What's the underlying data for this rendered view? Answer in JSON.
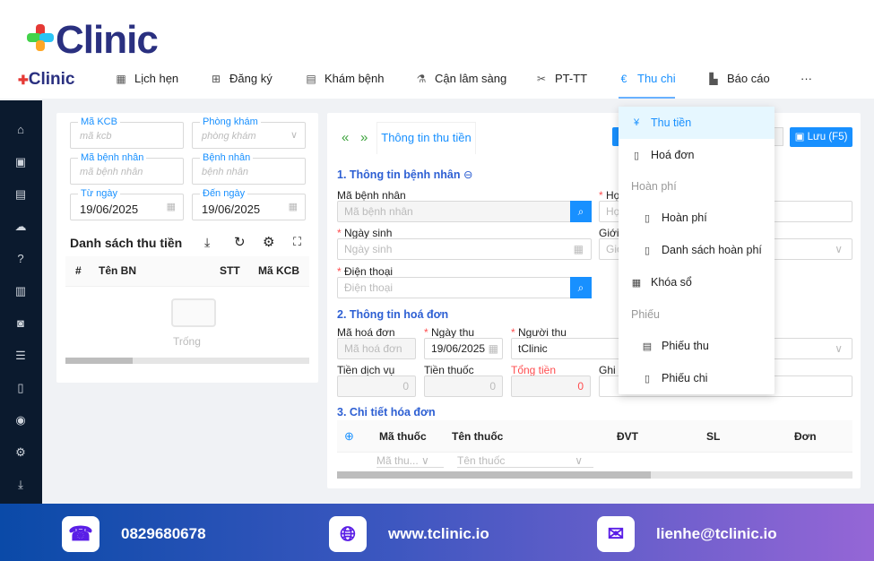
{
  "brand": {
    "name": "Clinic",
    "prefix": "t"
  },
  "nav": {
    "items": [
      {
        "label": "Lịch hẹn",
        "icon": "calendar-icon"
      },
      {
        "label": "Đăng ký",
        "icon": "plus-square-icon"
      },
      {
        "label": "Khám bệnh",
        "icon": "medical-record-icon"
      },
      {
        "label": "Cận lâm sàng",
        "icon": "flask-icon"
      },
      {
        "label": "PT-TT",
        "icon": "scissors-icon"
      },
      {
        "label": "Thu chi",
        "icon": "euro-circle-icon",
        "active": true
      },
      {
        "label": "Báo cáo",
        "icon": "area-chart-icon"
      },
      {
        "label": "···",
        "icon": "more-icon"
      }
    ]
  },
  "filters": {
    "ma_kcb": {
      "label": "Mã KCB",
      "placeholder": "mã kcb"
    },
    "phong_kham": {
      "label": "Phòng khám",
      "placeholder": "phòng khám"
    },
    "ma_benh_nhan": {
      "label": "Mã bệnh nhân",
      "placeholder": "mã bệnh nhân"
    },
    "benh_nhan": {
      "label": "Bệnh nhân",
      "placeholder": "bệnh nhân"
    },
    "tu_ngay": {
      "label": "Từ ngày",
      "value": "19/06/2025"
    },
    "den_ngay": {
      "label": "Đến ngày",
      "value": "19/06/2025"
    }
  },
  "list": {
    "title": "Danh sách thu tiền",
    "columns": [
      "#",
      "Tên BN",
      "STT",
      "Mã KCB"
    ],
    "empty": "Trống"
  },
  "form": {
    "tab": "Thông tin thu tiền",
    "save": "Lưu (F5)",
    "section1": "1. Thông tin bệnh nhân",
    "ma_benh_nhan": {
      "label": "Mã bệnh nhân",
      "placeholder": "Mã bệnh nhân"
    },
    "ho_ten": {
      "label": "Họ",
      "placeholder": "Họ"
    },
    "ngay_sinh": {
      "label": "Ngày sinh",
      "placeholder": "Ngày sinh"
    },
    "gioi_tinh": {
      "label": "Giới",
      "placeholder": "Giớ"
    },
    "dien_thoai": {
      "label": "Điện thoại",
      "placeholder": "Điện thoại"
    },
    "section2": "2. Thông tin hoá đơn",
    "ma_hoa_don": {
      "label": "Mã hoá đơn",
      "placeholder": "Mã hoá đơn"
    },
    "ngay_thu": {
      "label": "Ngày thu",
      "value": "19/06/2025"
    },
    "nguoi_thu": {
      "label": "Người thu",
      "value": "tClinic"
    },
    "tien_dich_vu": {
      "label": "Tiền dịch vụ",
      "value": "0"
    },
    "tien_thuoc": {
      "label": "Tiền thuốc",
      "value": "0"
    },
    "tong_tien": {
      "label": "Tổng tiền",
      "value": "0"
    },
    "ghi_chu": {
      "label": "Ghi"
    },
    "section3": "3. Chi tiết hóa đơn",
    "detail_columns": [
      "Mã thuốc",
      "Tên thuốc",
      "ĐVT",
      "SL",
      "Đơn"
    ],
    "detail_placeholders": {
      "ma_thuoc": "Mã thu...",
      "ten_thuoc": "Tên thuốc"
    }
  },
  "dropdown": {
    "items": [
      {
        "label": "Thu tiền",
        "icon": "receipt-icon",
        "active": true
      },
      {
        "label": "Hoá đơn",
        "icon": "file-icon"
      }
    ],
    "group1": "Hoàn phí",
    "group1_items": [
      {
        "label": "Hoàn phí"
      },
      {
        "label": "Danh sách hoàn phí"
      }
    ],
    "lock": {
      "label": "Khóa sổ"
    },
    "group2": "Phiếu",
    "group2_items": [
      {
        "label": "Phiếu thu"
      },
      {
        "label": "Phiếu chi"
      }
    ]
  },
  "footer": {
    "phone": "0829680678",
    "website": "www.tclinic.io",
    "email": "lienhe@tclinic.io"
  },
  "colors": {
    "accent": "#1890ff",
    "brand": "#2a3080",
    "sidebar": "#0b1a2e",
    "danger": "#ff4d4f"
  }
}
